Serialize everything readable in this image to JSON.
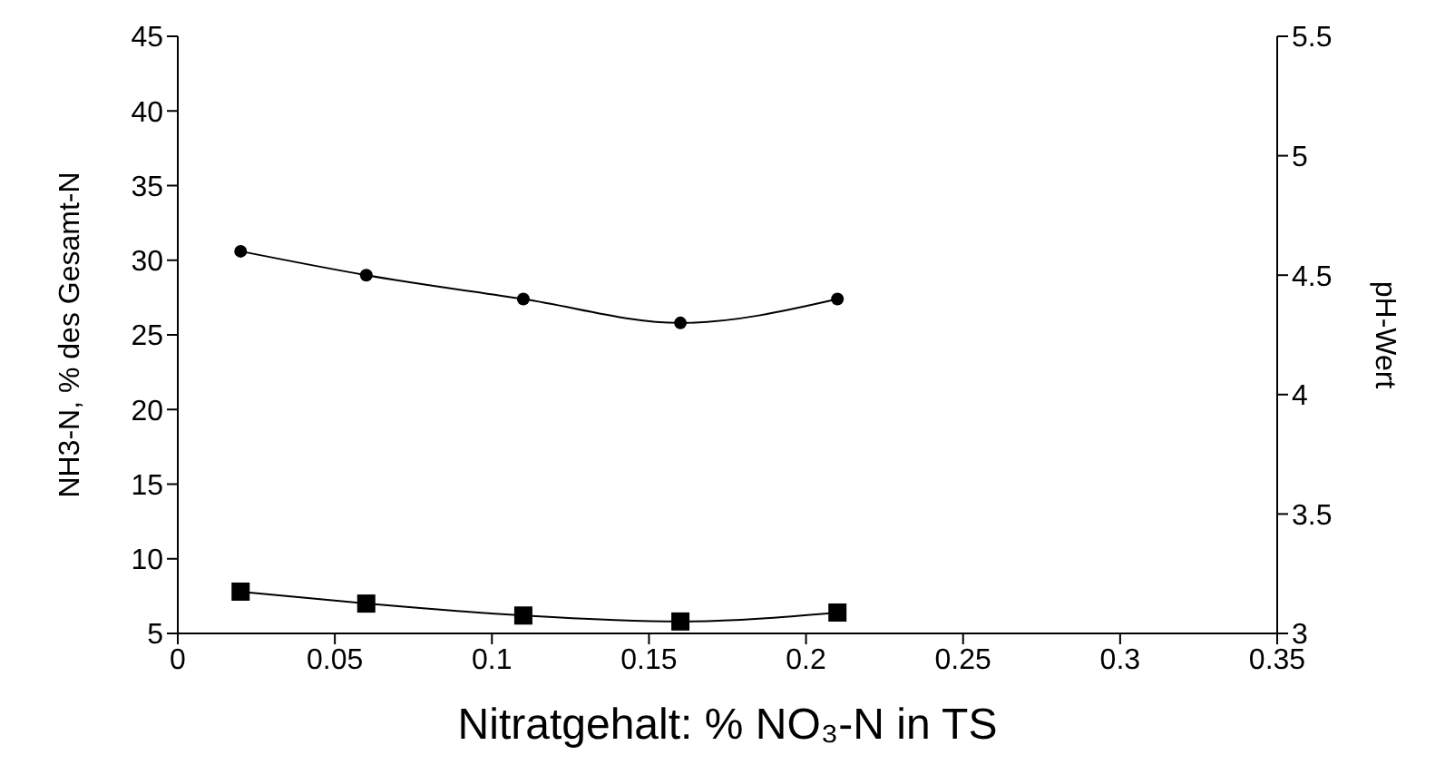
{
  "chart_data": {
    "type": "line",
    "xlabel": "Nitratgehalt: % NO₃-N in TS",
    "ylabel": "NH3-N, % des Gesamt-N",
    "y2label": "pH-Wert",
    "x": [
      0.02,
      0.06,
      0.11,
      0.16,
      0.21
    ],
    "series": [
      {
        "color": "#000000",
        "marker": "circle",
        "axis": "y2",
        "values": [
          4.6,
          4.5,
          4.4,
          4.3,
          4.4
        ]
      },
      {
        "color": "#000000",
        "marker": "square",
        "values": [
          7.8,
          7.0,
          6.2,
          5.8,
          6.4
        ]
      }
    ],
    "xlim": [
      0,
      0.35
    ],
    "xticks": [
      0,
      0.05,
      0.1,
      0.15,
      0.2,
      0.25,
      0.3,
      0.35
    ],
    "ylim": [
      5,
      45
    ],
    "yticks": [
      5,
      10,
      15,
      20,
      25,
      30,
      35,
      40,
      45
    ],
    "y2lim": [
      3,
      5.5
    ],
    "y2ticks": [
      3,
      3.5,
      4,
      4.5,
      5,
      5.5
    ],
    "line_style": "solid"
  }
}
